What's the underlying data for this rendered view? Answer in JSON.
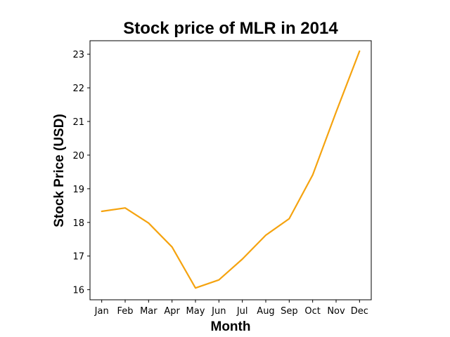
{
  "chart_data": {
    "type": "line",
    "title": "Stock price of MLR in 2014",
    "xlabel": "Month",
    "ylabel": "Stock Price (USD)",
    "categories": [
      "Jan",
      "Feb",
      "Mar",
      "Apr",
      "May",
      "Jun",
      "Jul",
      "Aug",
      "Sep",
      "Oct",
      "Nov",
      "Dec"
    ],
    "series": [
      {
        "values": [
          18.33,
          18.43,
          17.98,
          17.27,
          16.05,
          16.29,
          16.91,
          17.62,
          18.11,
          19.41,
          21.28,
          23.09
        ],
        "color": "#f5a30f"
      }
    ],
    "yticks": [
      16,
      17,
      18,
      19,
      20,
      21,
      22,
      23
    ],
    "ylim": [
      15.7,
      23.4
    ],
    "grid": false,
    "legend": "none"
  }
}
